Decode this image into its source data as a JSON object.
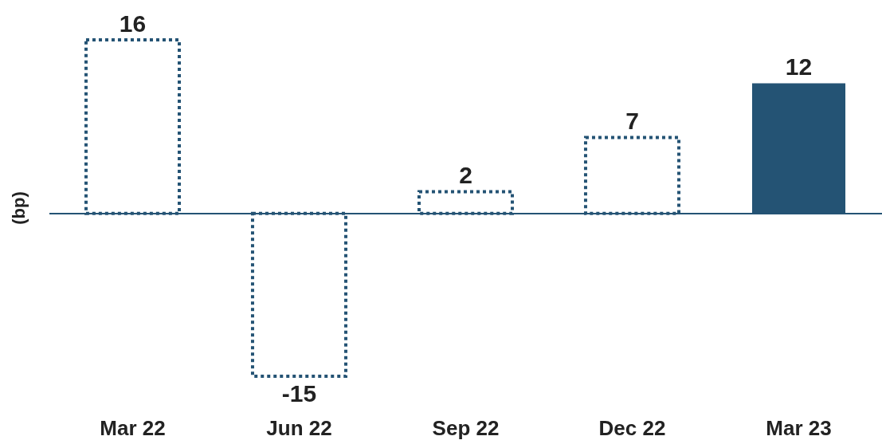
{
  "chart_data": {
    "type": "bar",
    "ylabel": "(bp)",
    "categories": [
      "Mar 22",
      "Jun 22",
      "Sep 22",
      "Dec 22",
      "Mar 23"
    ],
    "series": [
      {
        "color": "#245374",
        "line_style": "dotted",
        "values": [
          16,
          -15,
          2,
          7,
          null
        ]
      },
      {
        "color": "#245374",
        "values": [
          null,
          null,
          null,
          null,
          12
        ]
      }
    ],
    "ref_lines": [
      {
        "axis": "y",
        "value": 0,
        "color": "#245374"
      }
    ],
    "data_labels": true
  }
}
